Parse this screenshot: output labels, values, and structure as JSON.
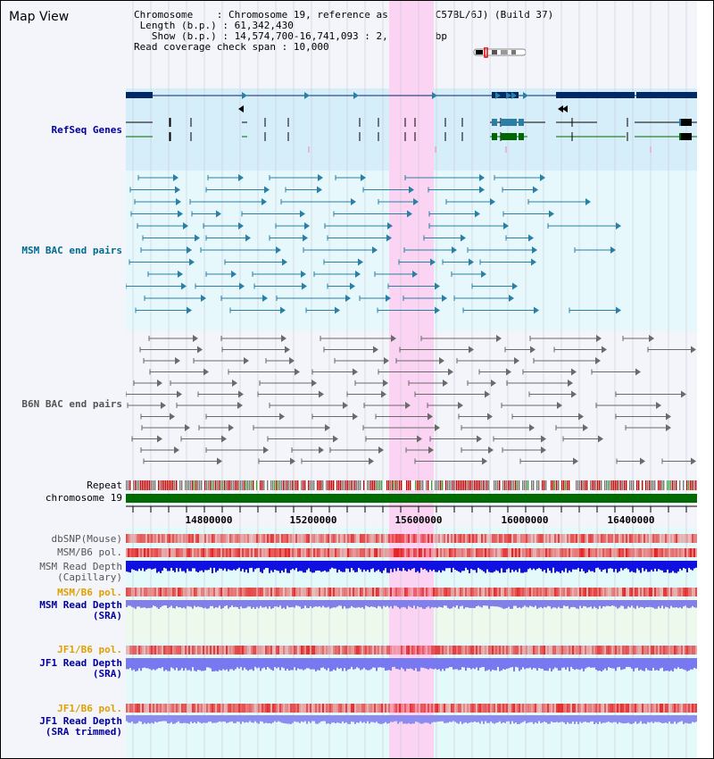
{
  "title": "Map View",
  "info": {
    "chromosome_label": "Chromosome",
    "chromosome_value": "Chromosome 19, reference assembly (C57BL/6J) (Build 37)",
    "length_label": "Length (b.p.)",
    "length_value": "61,342,430",
    "show_label": "Show (b.p.)",
    "show_value": "14,574,700-16,741,093 : 2,166,394 bp",
    "coverage_label": "Read coverage check span",
    "coverage_value": "10,000"
  },
  "tracks": {
    "refseq": "RefSeq Genes",
    "msm_bac": "MSM BAC end pairs",
    "b6n_bac": "B6N BAC end pairs",
    "repeat": "Repeat",
    "chromosome": "chromosome 19",
    "dbsnp": "dbSNP(Mouse)",
    "msm_b6_pol": "MSM/B6 pol.",
    "msm_depth_cap_1": "MSM Read Depth",
    "msm_depth_cap_2": "(Capillary)",
    "msm_b6_pol2": "MSM/B6 pol.",
    "msm_depth_sra_1": "MSM Read Depth",
    "msm_depth_sra_2": "(SRA)",
    "jf1_pol1": "JF1/B6 pol.",
    "jf1_depth_1": "JF1 Read Depth",
    "jf1_depth_2": "(SRA)",
    "jf1_pol2": "JF1/B6 pol.",
    "jf1_trim_1": "JF1 Read Depth",
    "jf1_trim_2": "(SRA trimmed)"
  },
  "ruler": {
    "ticks": [
      "14800000",
      "15200000",
      "15600000",
      "16000000",
      "16400000"
    ]
  },
  "colors": {
    "highlight": "#fbd3f3",
    "refseq_bg": "#d6eefa",
    "bac_bg": "#e6f8fb",
    "navy": "#002a66",
    "teal": "#2a7fa6",
    "green": "#006600"
  }
}
